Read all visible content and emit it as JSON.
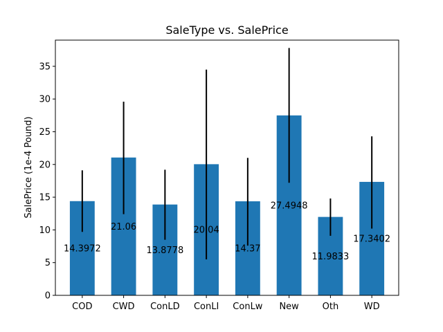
{
  "chart_data": {
    "type": "bar",
    "title": "SaleType vs. SalePrice",
    "xlabel": "",
    "ylabel": "SalePrice (1e-4 Pound)",
    "categories": [
      "COD",
      "CWD",
      "ConLD",
      "ConLI",
      "ConLw",
      "New",
      "Oth",
      "WD"
    ],
    "values": [
      14.3972,
      21.06,
      13.8778,
      20.04,
      14.37,
      27.4948,
      11.9833,
      17.3402
    ],
    "data_labels": [
      "14.3972",
      "21.06",
      "13.8778",
      "20.04",
      "14.37",
      "27.4948",
      "11.9833",
      "17.3402"
    ],
    "error_low": [
      9.7,
      12.4,
      8.5,
      5.5,
      7.6,
      17.2,
      9.1,
      10.2
    ],
    "error_high": [
      19.1,
      29.6,
      19.2,
      34.5,
      21.0,
      37.8,
      14.8,
      24.3
    ],
    "ylim": [
      0,
      39
    ],
    "yticks": [
      0,
      5,
      10,
      15,
      20,
      25,
      30,
      35
    ],
    "ytick_labels": [
      "0",
      "5",
      "10",
      "15",
      "20",
      "25",
      "30",
      "35"
    ],
    "bar_color": "#1f77b4",
    "error_color": "#000000",
    "grid": false
  }
}
